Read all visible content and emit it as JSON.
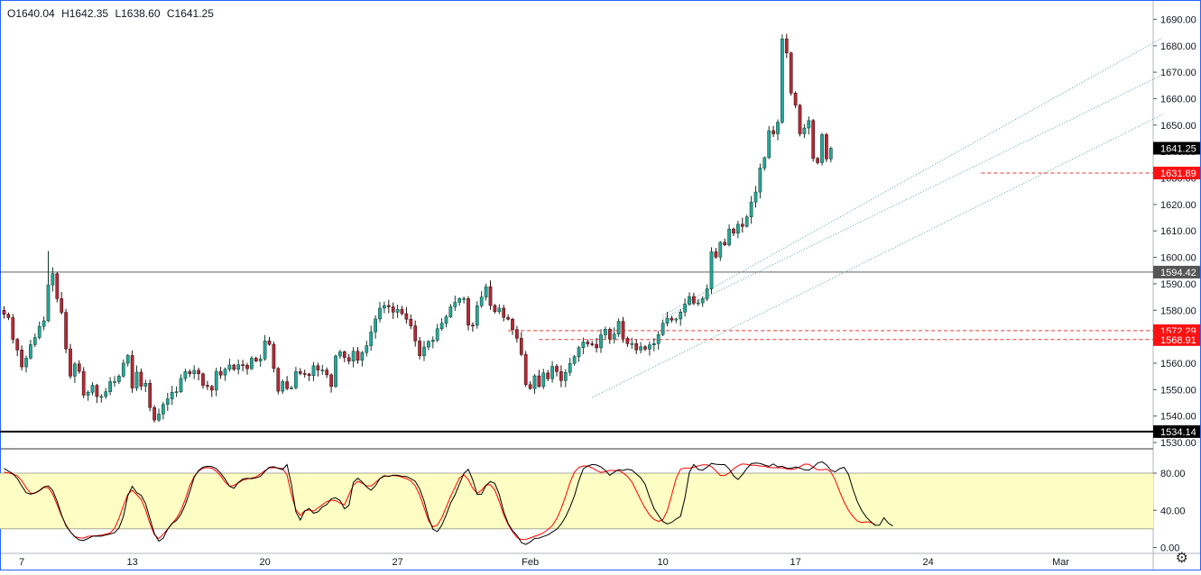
{
  "ohlc": {
    "open": "O1640.04",
    "high": "H1642.35",
    "low": "L1638.60",
    "close": "C1641.25"
  },
  "colors": {
    "up": "#26a69a",
    "down": "#b52a35",
    "upBorder": "#0e3b2b",
    "downBorder": "#2b0a0d",
    "hline": "#000000",
    "dash": "#e53935",
    "channel": "#5f9ea0",
    "stochK": "#000000",
    "stochD": "#ff0000",
    "band": "#fdfdc4"
  },
  "price_labels": [
    {
      "text": "1641.25",
      "bg": "#000000",
      "fg": "#ffffff"
    },
    {
      "text": "1631.89",
      "bg": "#ff1010",
      "fg": "#ffffff"
    },
    {
      "text": "1594.42",
      "bg": "#555555",
      "fg": "#ffffff"
    },
    {
      "text": "1572.29",
      "bg": "#ff1010",
      "fg": "#ffffff"
    },
    {
      "text": "1568.91",
      "bg": "#ff1010",
      "fg": "#ffffff"
    },
    {
      "text": "1534.14",
      "bg": "#000000",
      "fg": "#ffffff"
    }
  ],
  "chart_data": [
    {
      "type": "candlestick",
      "title": "",
      "xlabel": "",
      "ylabel": "",
      "ylim": [
        1528,
        1694
      ],
      "y_ticks": [
        "1530.00",
        "1540.00",
        "1550.00",
        "1560.00",
        "1570.00",
        "1580.00",
        "1590.00",
        "1600.00",
        "1610.00",
        "1620.00",
        "1630.00",
        "1640.00",
        "1650.00",
        "1660.00",
        "1670.00",
        "1680.00",
        "1690.00"
      ],
      "x_tick_labels": [
        "7",
        "13",
        "20",
        "27",
        "Feb",
        "10",
        "17",
        "24",
        "Mar"
      ],
      "x_tick_bar_index": [
        4,
        29,
        59,
        89,
        119,
        149,
        179,
        209,
        239
      ],
      "horizontal_lines": [
        1594.42,
        1534.14
      ],
      "dashed_levels": [
        {
          "value": 1631.89,
          "from_bar": 221
        },
        {
          "value": 1572.29,
          "from_bar": 114
        },
        {
          "value": 1568.91,
          "from_bar": 121
        }
      ],
      "channel_lines": [
        {
          "from": [
            133,
            1547
          ],
          "to": [
            262,
            1654
          ]
        },
        {
          "from": [
            149,
            1577
          ],
          "to": [
            262,
            1669
          ]
        },
        {
          "from": [
            149,
            1578
          ],
          "to": [
            262,
            1683
          ]
        }
      ],
      "closes": [
        1578.5,
        1577.2,
        1569.0,
        1565.0,
        1558.6,
        1561.9,
        1567.0,
        1569.7,
        1573.9,
        1576.0,
        1589.6,
        1593.8,
        1584.4,
        1579.2,
        1565.4,
        1555.1,
        1559.7,
        1556.9,
        1547.9,
        1549.0,
        1551.6,
        1547.4,
        1547.4,
        1549.2,
        1553.0,
        1553.0,
        1555.1,
        1560.0,
        1562.9,
        1550.6,
        1556.6,
        1551.3,
        1552.4,
        1543.2,
        1538.5,
        1540.8,
        1544.4,
        1546.5,
        1549.0,
        1549.2,
        1554.2,
        1556.8,
        1556.0,
        1557.3,
        1556.0,
        1551.6,
        1551.2,
        1549.8,
        1556.9,
        1555.5,
        1557.7,
        1559.3,
        1557.7,
        1559.4,
        1559.2,
        1557.9,
        1561.9,
        1560.8,
        1561.6,
        1568.4,
        1567.1,
        1558.0,
        1549.4,
        1553.0,
        1550.4,
        1550.7,
        1556.8,
        1556.1,
        1555.9,
        1555.3,
        1559.0,
        1557.4,
        1557.4,
        1555.6,
        1551.2,
        1562.7,
        1564.3,
        1562.1,
        1560.8,
        1564.5,
        1561.1,
        1564.0,
        1566.6,
        1571.8,
        1576.7,
        1580.8,
        1581.8,
        1581.3,
        1579.3,
        1580.3,
        1578.7,
        1576.6,
        1574.1,
        1568.4,
        1562.8,
        1566.1,
        1568.2,
        1568.7,
        1573.0,
        1575.1,
        1577.5,
        1581.3,
        1583.0,
        1584.4,
        1584.4,
        1574.4,
        1574.3,
        1581.7,
        1585.0,
        1588.9,
        1581.8,
        1579.5,
        1580.8,
        1577.3,
        1576.6,
        1572.7,
        1569.4,
        1563.3,
        1551.9,
        1550.4,
        1555.2,
        1551.2,
        1556.3,
        1554.1,
        1558.8,
        1556.8,
        1553.4,
        1556.5,
        1559.9,
        1562.5,
        1565.9,
        1568.0,
        1567.3,
        1567.1,
        1565.8,
        1570.7,
        1572.8,
        1569.2,
        1571.0,
        1575.8,
        1569.4,
        1567.4,
        1567.4,
        1565.0,
        1566.2,
        1565.3,
        1566.9,
        1567.4,
        1570.8,
        1575.1,
        1577.0,
        1576.3,
        1576.7,
        1579.3,
        1582.3,
        1585.2,
        1582.7,
        1582.8,
        1584.4,
        1588.1,
        1602.1,
        1600.1,
        1605.7,
        1604.7,
        1610.7,
        1609.1,
        1612.5,
        1611.7,
        1615.3,
        1620.9,
        1624.7,
        1633.8,
        1637.7,
        1647.9,
        1646.7,
        1651.1,
        1682.6,
        1677.3,
        1662.1,
        1657.5,
        1646.7,
        1648.9,
        1651.7,
        1637.4,
        1635.8,
        1646.4,
        1637.2,
        1641.25
      ],
      "stochastic": {
        "ylim": [
          0,
          100
        ],
        "y_ticks": [
          "0.00",
          "40.00",
          "80.00"
        ],
        "band": [
          20,
          80
        ],
        "k": [
          85.1,
          82.1,
          79.3,
          74.2,
          66.3,
          59.0,
          57.3,
          58.8,
          61.4,
          65.2,
          66.4,
          61.4,
          49.7,
          35.1,
          23.4,
          16.9,
          11.5,
          8.1,
          7.6,
          9.7,
          12.1,
          12.4,
          12.2,
          13.4,
          14.5,
          15.9,
          21.1,
          33.5,
          55.9,
          65.8,
          59.1,
          56.2,
          47.2,
          31.0,
          14.9,
          6.8,
          10.1,
          19.7,
          25.9,
          29.2,
          35.7,
          46.2,
          60.0,
          75.6,
          82.9,
          86.4,
          87.4,
          87.0,
          84.9,
          79.9,
          73.5,
          65.8,
          63.7,
          70.0,
          73.7,
          74.4,
          74.1,
          75.0,
          76.6,
          81.9,
          86.4,
          86.9,
          85.2,
          83.9,
          89.2,
          67.6,
          38.6,
          29.6,
          39.1,
          42.0,
          36.8,
          38.4,
          43.7,
          46.2,
          52.5,
          53.4,
          50.5,
          41.6,
          45.3,
          70.1,
          74.6,
          70.4,
          65.2,
          61.6,
          66.4,
          74.2,
          77.3,
          76.4,
          77.9,
          77.7,
          76.6,
          76.4,
          74.1,
          71.3,
          63.1,
          49.9,
          32.1,
          19.6,
          17.1,
          24.0,
          35.1,
          47.9,
          56.6,
          68.5,
          79.7,
          84.2,
          72.8,
          57.2,
          57.4,
          66.7,
          71.1,
          68.9,
          57.0,
          38.7,
          26.0,
          18.1,
          13.2,
          5.3,
          3.3,
          6.0,
          9.8,
          10.1,
          11.9,
          13.5,
          16.7,
          19.6,
          25.2,
          33.0,
          43.3,
          55.6,
          71.9,
          84.7,
          87.7,
          89.3,
          88.8,
          86.7,
          82.9,
          77.6,
          81.2,
          83.8,
          82.9,
          84.3,
          83.3,
          79.1,
          75.1,
          67.9,
          54.0,
          42.1,
          34.6,
          27.9,
          25.4,
          27.1,
          30.6,
          33.6,
          53.5,
          81.0,
          89.3,
          84.0,
          83.2,
          86.6,
          90.5,
          89.6,
          89.2,
          89.2,
          84.6,
          77.2,
          73.1,
          78.4,
          85.1,
          90.2,
          91.0,
          90.4,
          88.7,
          87.3,
          89.9,
          86.8,
          87.4,
          85.4,
          85.2,
          86.6,
          85.5,
          83.6,
          83.2,
          86.3,
          90.9,
          92.2,
          89.0,
          83.1,
          81.5,
          84.8,
          86.3,
          78.4,
          62.5,
          49.3,
          39.7,
          32.8,
          28.0,
          23.9,
          24.0,
          32.0,
          26.3,
          23.2
        ],
        "d": [
          81.1,
          80.3,
          78.9,
          77.1,
          71.9,
          64.5,
          58.3,
          58.4,
          60.9,
          64.7,
          64.4,
          57.4,
          46.2,
          34.2,
          24.4,
          16.8,
          11.8,
          10.5,
          10.1,
          12.1,
          12.4,
          12.7,
          13.4,
          14.4,
          15.7,
          20.7,
          31.6,
          45.1,
          57.3,
          61.7,
          56.8,
          51.8,
          40.6,
          25.8,
          13.8,
          9.6,
          14.3,
          19.8,
          25.7,
          31.4,
          39.8,
          52.1,
          66.3,
          76.5,
          82.1,
          85.3,
          86.1,
          85.2,
          82.1,
          77.0,
          70.2,
          65.9,
          66.8,
          69.6,
          72.4,
          73.8,
          74.7,
          76.0,
          79.1,
          82.7,
          85.6,
          85.9,
          85.5,
          84.8,
          78.1,
          56.8,
          40.6,
          34.6,
          39.7,
          40.3,
          39.2,
          42.6,
          46.1,
          49.6,
          50.9,
          50.3,
          47.8,
          46.0,
          56.6,
          67.0,
          71.2,
          69.2,
          66.4,
          66.1,
          69.9,
          74.3,
          76.6,
          76.9,
          77.6,
          77.0,
          75.7,
          74.1,
          71.7,
          66.3,
          56.6,
          43.1,
          28.9,
          22.2,
          24.1,
          32.0,
          43.3,
          55.1,
          64.8,
          74.9,
          78.2,
          73.3,
          63.7,
          58.4,
          61.6,
          67.3,
          67.5,
          61.8,
          49.6,
          35.2,
          24.9,
          17.0,
          10.9,
          8.5,
          8.7,
          10.2,
          12.1,
          13.6,
          15.9,
          19.4,
          23.6,
          31.1,
          41.8,
          55.2,
          69.7,
          81.1,
          86.1,
          87.8,
          87.7,
          85.7,
          82.8,
          80.8,
          81.7,
          82.9,
          82.9,
          82.6,
          80.4,
          76.4,
          70.5,
          61.0,
          51.1,
          42.3,
          35.0,
          30.3,
          28.0,
          29.9,
          39.6,
          56.5,
          74.3,
          84.4,
          85.6,
          85.4,
          86.3,
          87.9,
          89.0,
          88.9,
          87.0,
          82.5,
          77.5,
          77.5,
          80.2,
          84.6,
          88.0,
          89.9,
          89.5,
          88.5,
          88.5,
          87.7,
          87.5,
          86.1,
          85.8,
          85.9,
          85.7,
          84.7,
          83.9,
          84.8,
          86.9,
          89.7,
          89.6,
          86.4,
          83.6,
          83.7,
          84.4,
          81.3,
          72.4,
          60.0,
          48.9,
          40.0,
          33.4,
          28.5,
          26.9,
          27.6,
          27.2,
          24.8
        ]
      }
    }
  ]
}
